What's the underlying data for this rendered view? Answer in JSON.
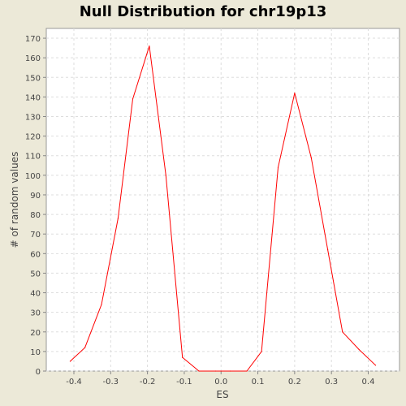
{
  "chart_data": {
    "type": "line",
    "title": "Null Distribution for chr19p13",
    "xlabel": "ES",
    "ylabel": "# of random values",
    "xlim": [
      -0.475,
      0.485
    ],
    "ylim": [
      0,
      175
    ],
    "xticks": [
      -0.4,
      -0.3,
      -0.2,
      -0.1,
      0.0,
      0.1,
      0.2,
      0.3,
      0.4
    ],
    "xtick_labels": [
      "-0.4",
      "-0.3",
      "-0.2",
      "-0.1",
      "0.0",
      "0.1",
      "0.2",
      "0.3",
      "0.4"
    ],
    "yticks": [
      0,
      10,
      20,
      30,
      40,
      50,
      60,
      70,
      80,
      90,
      100,
      110,
      120,
      130,
      140,
      150,
      160,
      170
    ],
    "ytick_labels": [
      "0",
      "10",
      "20",
      "30",
      "40",
      "50",
      "60",
      "70",
      "80",
      "90",
      "100",
      "110",
      "120",
      "130",
      "140",
      "150",
      "160",
      "170"
    ],
    "grid": true,
    "series": [
      {
        "color": "#ff0000",
        "x": [
          -0.41,
          -0.37,
          -0.325,
          -0.28,
          -0.24,
          -0.195,
          -0.15,
          -0.105,
          -0.06,
          -0.015,
          0.025,
          0.07,
          0.11,
          0.155,
          0.2,
          0.245,
          0.29,
          0.33,
          0.375,
          0.42
        ],
        "y": [
          5,
          12,
          34,
          78,
          139,
          166,
          100,
          7,
          0,
          0,
          0,
          0,
          10,
          104,
          142,
          109,
          62,
          20,
          11,
          3
        ]
      }
    ]
  }
}
